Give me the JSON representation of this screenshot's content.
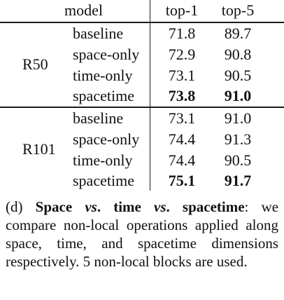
{
  "table": {
    "headers": {
      "model": "model",
      "top1": "top-1",
      "top5": "top-5"
    },
    "groups": [
      {
        "name": "R50",
        "rows": [
          {
            "variant": "baseline",
            "top1": "71.8",
            "top5": "89.7",
            "best": false
          },
          {
            "variant": "space-only",
            "top1": "72.9",
            "top5": "90.8",
            "best": false
          },
          {
            "variant": "time-only",
            "top1": "73.1",
            "top5": "90.5",
            "best": false
          },
          {
            "variant": "spacetime",
            "top1": "73.8",
            "top5": "91.0",
            "best": true
          }
        ]
      },
      {
        "name": "R101",
        "rows": [
          {
            "variant": "baseline",
            "top1": "73.1",
            "top5": "91.0",
            "best": false
          },
          {
            "variant": "space-only",
            "top1": "74.4",
            "top5": "91.3",
            "best": false
          },
          {
            "variant": "time-only",
            "top1": "74.4",
            "top5": "90.5",
            "best": false
          },
          {
            "variant": "spacetime",
            "top1": "75.1",
            "top5": "91.7",
            "best": true
          }
        ]
      }
    ]
  },
  "caption": {
    "label": "(d)",
    "title_part1": "Space",
    "vs1": "vs",
    "title_part2": ". time",
    "vs2": "vs",
    "title_part3": ". spacetime",
    "body": ": we compare non-local operations applied along space, time, and spacetime dimensions respectively. 5 non-local blocks are used."
  }
}
